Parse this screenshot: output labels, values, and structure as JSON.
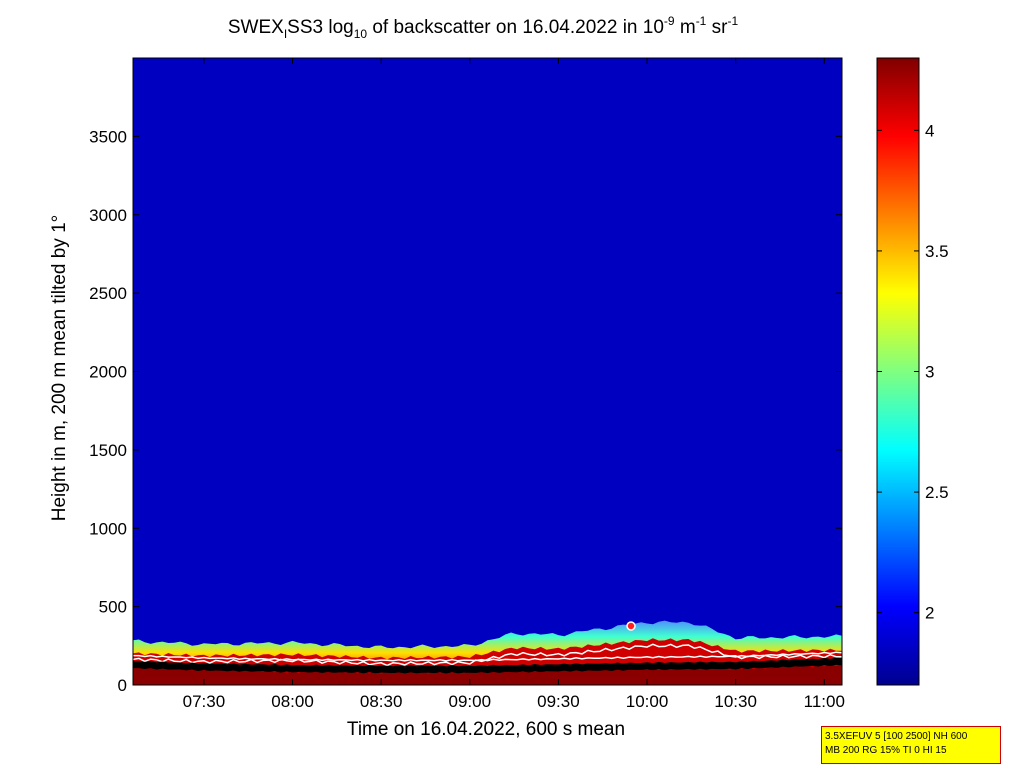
{
  "title": {
    "dataset": "SWEX",
    "dataset_sub": "I",
    "instrument": "SS3",
    "quantity": "log",
    "log_base": "10",
    "quantity_rest": "of backscatter on 16.04.2022 in 10",
    "exp1": "-9",
    "unit_m": "m",
    "exp2": "-1",
    "unit_sr": "sr",
    "exp3": "-1"
  },
  "info_box": {
    "line1": "3.5XEFUV 5 [100 2500] NH 600",
    "line2": "MB 200 RG 15% TI 0 HI 15"
  },
  "chart_data": {
    "type": "heatmap",
    "date": "16.04.2022",
    "xlabel": "Time on 16.04.2022, 600 s mean",
    "ylabel": "Height in m, 200 m mean tilted by 1°",
    "x_range": [
      "07:06",
      "11:06"
    ],
    "ylim": [
      0,
      4000
    ],
    "x_ticks": [
      "07:30",
      "08:00",
      "08:30",
      "09:00",
      "09:30",
      "10:00",
      "10:30",
      "11:00"
    ],
    "y_ticks": [
      0,
      500,
      1000,
      1500,
      2000,
      2500,
      3000,
      3500
    ],
    "colorbar": {
      "range": [
        1.7,
        4.3
      ],
      "ticks": [
        2,
        2.5,
        3,
        3.5,
        4
      ],
      "colormap": "jet"
    },
    "background_value": 1.75,
    "top_of_signal_m": [
      {
        "t": "07:06",
        "h": 280
      },
      {
        "t": "07:30",
        "h": 260
      },
      {
        "t": "08:00",
        "h": 270
      },
      {
        "t": "08:30",
        "h": 240
      },
      {
        "t": "09:00",
        "h": 250
      },
      {
        "t": "09:15",
        "h": 330
      },
      {
        "t": "09:30",
        "h": 320
      },
      {
        "t": "09:45",
        "h": 360
      },
      {
        "t": "10:00",
        "h": 400
      },
      {
        "t": "10:15",
        "h": 400
      },
      {
        "t": "10:30",
        "h": 300
      },
      {
        "t": "11:06",
        "h": 310
      }
    ],
    "boundary_layer_height_m": [
      {
        "t": "07:06",
        "h": 130
      },
      {
        "t": "07:30",
        "h": 115
      },
      {
        "t": "08:00",
        "h": 105
      },
      {
        "t": "08:30",
        "h": 100
      },
      {
        "t": "09:00",
        "h": 100
      },
      {
        "t": "09:30",
        "h": 110
      },
      {
        "t": "10:00",
        "h": 120
      },
      {
        "t": "10:30",
        "h": 125
      },
      {
        "t": "11:06",
        "h": 150
      }
    ]
  }
}
